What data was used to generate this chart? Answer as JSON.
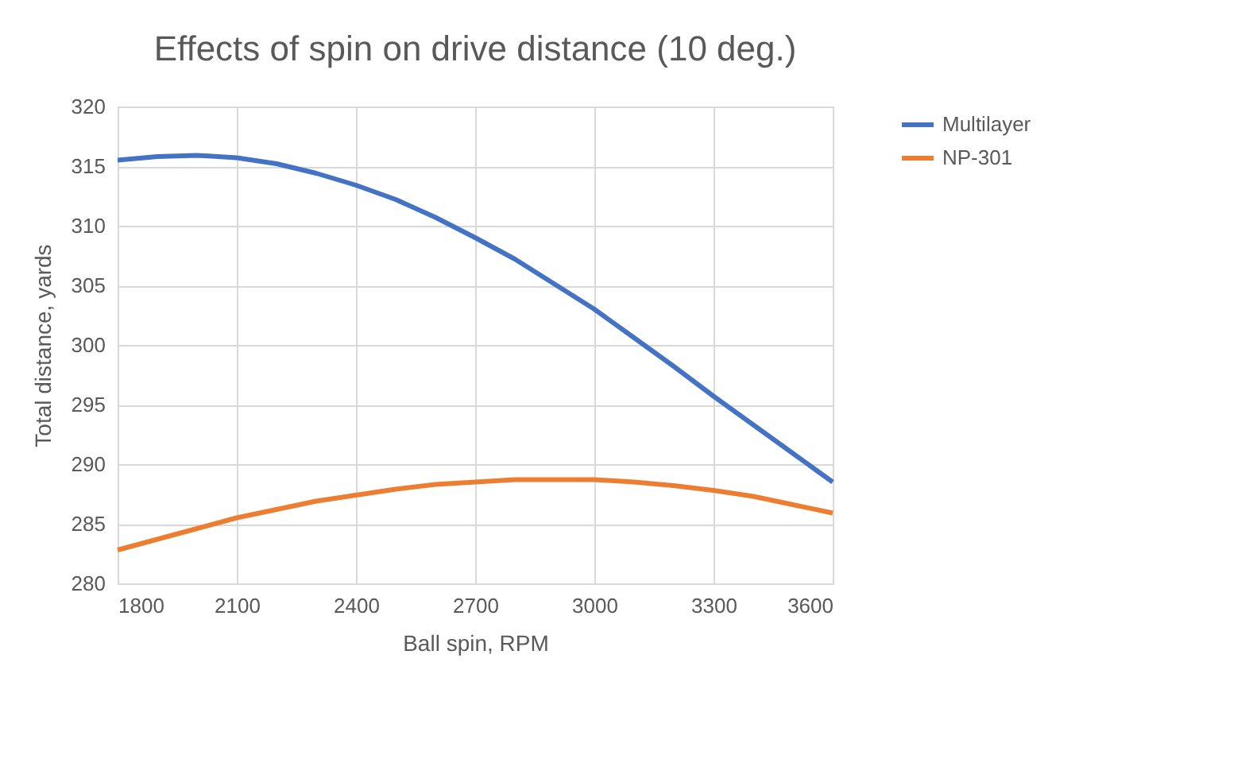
{
  "chart_data": {
    "type": "line",
    "title": "Effects of spin on drive distance (10 deg.)",
    "xlabel": "Ball spin, RPM",
    "ylabel": "Total distance, yards",
    "x": [
      1800,
      1900,
      2000,
      2100,
      2200,
      2300,
      2400,
      2500,
      2600,
      2700,
      2800,
      2900,
      3000,
      3100,
      3200,
      3300,
      3400,
      3500,
      3600
    ],
    "series": [
      {
        "name": "Multilayer",
        "color": "#4472c4",
        "values": [
          315.5,
          315.8,
          315.9,
          315.7,
          315.2,
          314.4,
          313.4,
          312.2,
          310.7,
          309.0,
          307.2,
          305.1,
          303.0,
          300.6,
          298.2,
          295.7,
          293.3,
          290.9,
          288.5
        ]
      },
      {
        "name": "NP-301",
        "color": "#ed7d31",
        "values": [
          282.8,
          283.7,
          284.6,
          285.5,
          286.2,
          286.9,
          287.4,
          287.9,
          288.3,
          288.5,
          288.7,
          288.7,
          288.7,
          288.5,
          288.2,
          287.8,
          287.3,
          286.6,
          285.9
        ]
      }
    ],
    "xlim": [
      1800,
      3600
    ],
    "xticks": [
      1800,
      2100,
      2400,
      2700,
      3000,
      3300,
      3600
    ],
    "ylim": [
      280,
      320
    ],
    "yticks": [
      280,
      285,
      290,
      295,
      300,
      305,
      310,
      315,
      320
    ],
    "grid": true,
    "legend": "right",
    "marker": "none",
    "line_style": "solid"
  }
}
